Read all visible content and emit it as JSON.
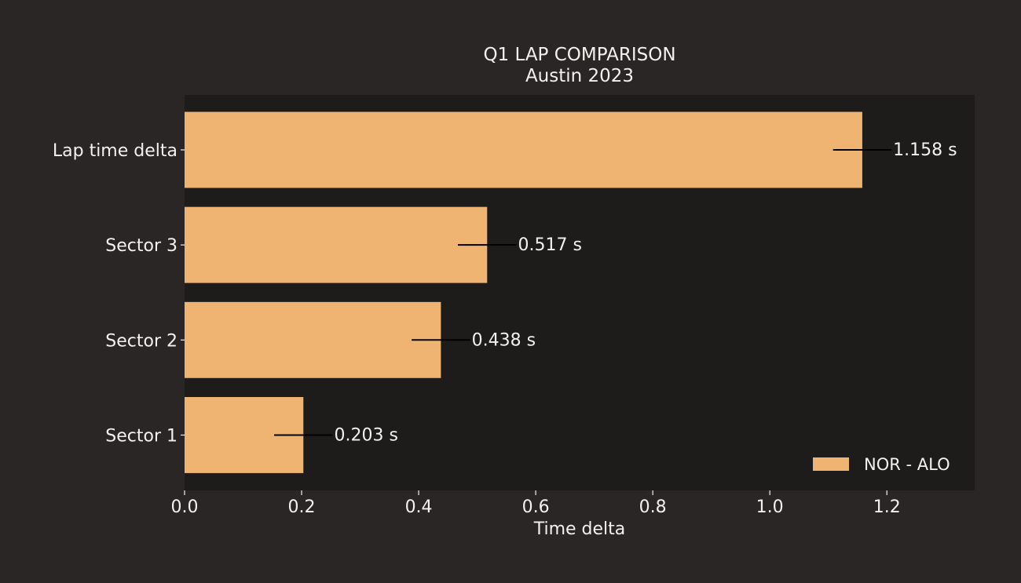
{
  "colors": {
    "page_background": "#292625",
    "plot_background": "#1e1c1b",
    "bar_fill": "#efb472",
    "text": "#f3f1ee",
    "error_bar": "#000000"
  },
  "chart_data": {
    "type": "bar",
    "orientation": "horizontal",
    "title": "Q1 LAP COMPARISON",
    "subtitle": "Austin 2023",
    "xlabel": "Time delta",
    "ylabel": "",
    "xlim": [
      0,
      1.35
    ],
    "x_ticks": [
      0.0,
      0.2,
      0.4,
      0.6,
      0.8,
      1.0,
      1.2
    ],
    "x_tick_labels": [
      "0.0",
      "0.2",
      "0.4",
      "0.6",
      "0.8",
      "1.0",
      "1.2"
    ],
    "categories": [
      "Lap time delta",
      "Sector 3",
      "Sector 2",
      "Sector 1"
    ],
    "series": [
      {
        "name": "NOR - ALO",
        "values": [
          1.158,
          0.517,
          0.438,
          0.203
        ],
        "error_half_width": [
          0.05,
          0.05,
          0.05,
          0.05
        ]
      }
    ],
    "data_labels": [
      "1.158 s",
      "0.517 s",
      "0.438 s",
      "0.203 s"
    ],
    "legend_position": "bottom-right",
    "grid": false
  }
}
